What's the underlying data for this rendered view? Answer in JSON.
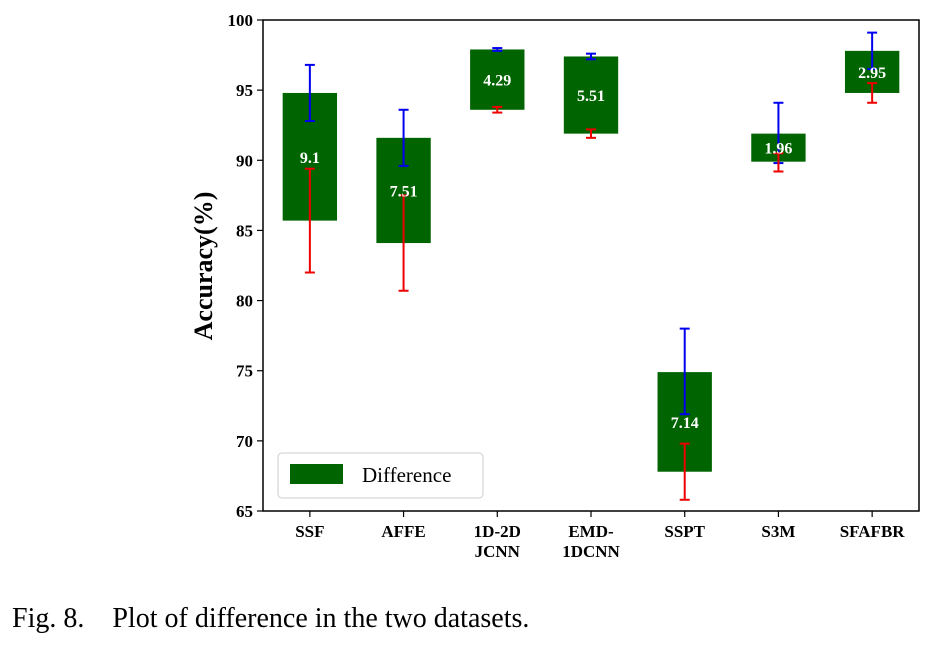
{
  "chart_data": {
    "type": "bar",
    "categories": [
      [
        "SSF"
      ],
      [
        "AFFE"
      ],
      [
        "1D-2D",
        "JCNN"
      ],
      [
        "EMD-",
        "1DCNN"
      ],
      [
        "SSPT"
      ],
      [
        "S3M"
      ],
      [
        "SFAFBR"
      ]
    ],
    "series": [
      {
        "name": "Difference",
        "low": [
          85.7,
          84.1,
          93.6,
          91.9,
          67.8,
          89.9,
          94.8
        ],
        "high": [
          94.8,
          91.6,
          97.9,
          97.4,
          74.9,
          91.9,
          97.8
        ],
        "values": [
          9.1,
          7.51,
          4.29,
          5.51,
          7.14,
          1.96,
          2.95
        ],
        "value_labels": [
          "9.1",
          "7.51",
          "4.29",
          "5.51",
          "7.14",
          "1.96",
          "2.95"
        ]
      }
    ],
    "error_bars_upper": [
      {
        "center": 94.8,
        "min": 92.8,
        "max": 96.8
      },
      {
        "center": 91.6,
        "min": 89.6,
        "max": 93.6
      },
      {
        "center": 97.9,
        "min": 97.8,
        "max": 98.0
      },
      {
        "center": 97.4,
        "min": 97.2,
        "max": 97.6
      },
      {
        "center": 74.9,
        "min": 71.9,
        "max": 78.0
      },
      {
        "center": 91.9,
        "min": 89.8,
        "max": 94.1
      },
      {
        "center": 97.8,
        "min": 96.5,
        "max": 99.1
      }
    ],
    "error_bars_lower": [
      {
        "center": 85.7,
        "min": 82.0,
        "max": 89.4
      },
      {
        "center": 84.1,
        "min": 80.7,
        "max": 87.5
      },
      {
        "center": 93.6,
        "min": 93.4,
        "max": 93.8
      },
      {
        "center": 91.9,
        "min": 91.6,
        "max": 92.2
      },
      {
        "center": 67.8,
        "min": 65.8,
        "max": 69.8
      },
      {
        "center": 89.9,
        "min": 89.2,
        "max": 90.5
      },
      {
        "center": 94.8,
        "min": 94.1,
        "max": 95.5
      }
    ],
    "title": "",
    "xlabel": "",
    "ylabel": "Accuracy(%)",
    "ylim": [
      65,
      100
    ],
    "yticks": [
      65,
      70,
      75,
      80,
      85,
      90,
      95,
      100
    ],
    "grid": false,
    "legend": {
      "entries": [
        "Difference"
      ],
      "placement": "lower-left"
    },
    "colors": {
      "bar": "#006400",
      "error_upper": "#0000ee",
      "error_lower": "#ee0000",
      "bar_label": "#ffffff"
    }
  },
  "caption": {
    "prefix": "Fig. 8.",
    "text": "Plot of difference in the two datasets."
  }
}
